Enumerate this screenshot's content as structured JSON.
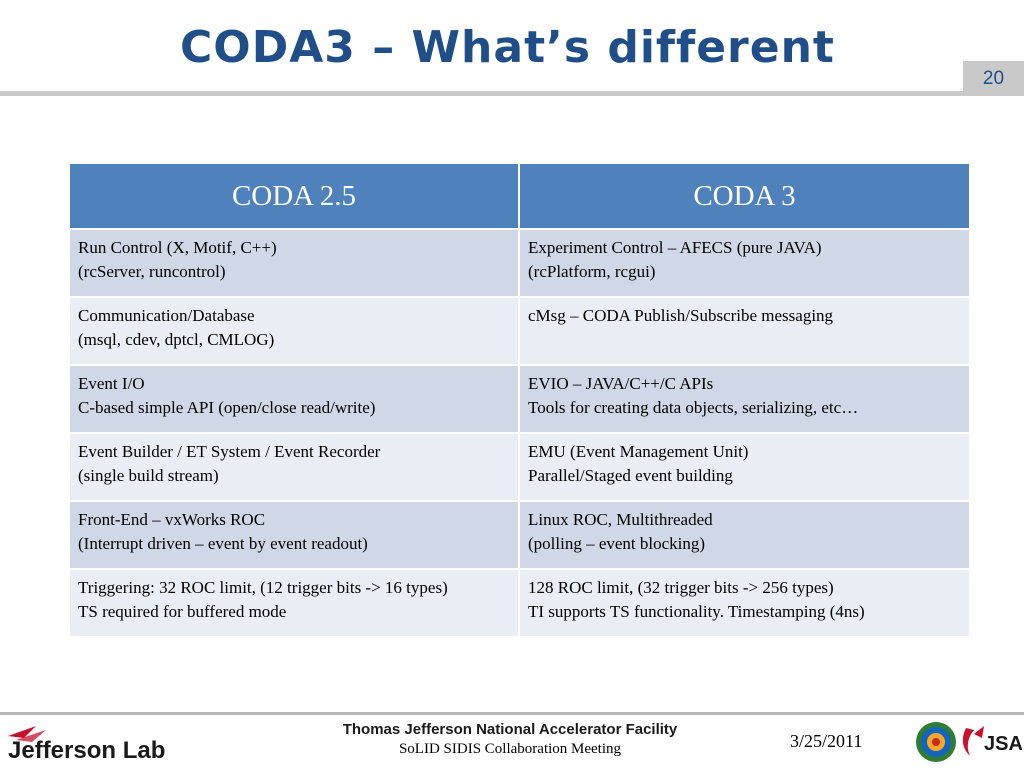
{
  "slide": {
    "title": "CODA3 – What’s different",
    "number": "20"
  },
  "table": {
    "headers": [
      "CODA 2.5",
      "CODA 3"
    ],
    "rows": [
      {
        "left": [
          "Run Control (X, Motif, C++)",
          "(rcServer, runcontrol)"
        ],
        "right": [
          "Experiment Control – AFECS (pure JAVA)",
          "(rcPlatform, rcgui)"
        ]
      },
      {
        "left": [
          "Communication/Database",
          "(msql, cdev, dptcl, CMLOG)"
        ],
        "right": [
          "cMsg – CODA Publish/Subscribe messaging"
        ]
      },
      {
        "left": [
          "Event I/O",
          "C-based simple API (open/close read/write)"
        ],
        "right": [
          "EVIO – JAVA/C++/C APIs",
          "Tools for creating data objects, serializing, etc…"
        ]
      },
      {
        "left": [
          "Event Builder / ET System / Event Recorder",
          "(single build stream)"
        ],
        "right": [
          "EMU (Event Management Unit)",
          "Parallel/Staged event building"
        ]
      },
      {
        "left": [
          "Front-End – vxWorks ROC",
          "(Interrupt driven – event by event readout)"
        ],
        "right": [
          "Linux ROC, Multithreaded",
          "(polling – event blocking)"
        ]
      },
      {
        "left": [
          "Triggering: 32 ROC limit, (12 trigger bits -> 16 types)",
          "TS required for buffered mode"
        ],
        "right": [
          "128 ROC limit, (32 trigger bits -> 256 types)",
          "TI supports TS functionality. Timestamping (4ns)"
        ]
      }
    ]
  },
  "footer": {
    "logo_text": "Jefferson Lab",
    "facility": "Thomas Jefferson National Accelerator Facility",
    "meeting": "SoLID SIDIS Collaboration Meeting",
    "date": "3/25/2011",
    "jsa_text": "JSA"
  },
  "colors": {
    "title": "#1f4e89",
    "header_bg": "#4f81bd",
    "row_dark": "#d0d8e8",
    "row_light": "#e9edf4",
    "logo_red": "#c8102e"
  }
}
